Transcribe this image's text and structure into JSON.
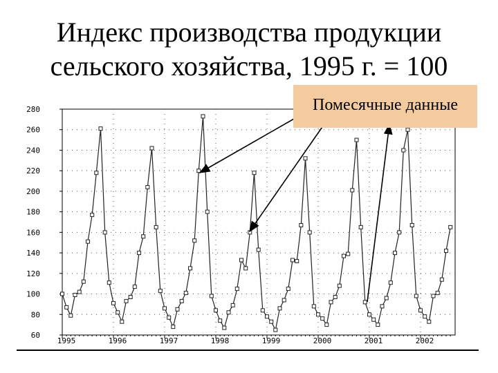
{
  "slide": {
    "title_line1": "Индекс производства продукции",
    "title_line2": "сельского хозяйства, 1995 г. = 100",
    "callout": "Помесячные данные"
  },
  "colors": {
    "line": "#222222",
    "callout_fill": "#f3cb9e",
    "grid": "#555555"
  },
  "chart_data": {
    "type": "line",
    "title": "",
    "xlabel": "",
    "ylabel": "",
    "ylim": [
      60,
      280
    ],
    "yticks": [
      60,
      80,
      100,
      120,
      140,
      160,
      180,
      200,
      220,
      240,
      260,
      280
    ],
    "xticks": [
      "1995",
      "1996",
      "1997",
      "1998",
      "1999",
      "2000",
      "2001",
      "2002"
    ],
    "x_start": "1995-01",
    "grid": "dotted",
    "markers": "square",
    "series": [
      {
        "values": [
          100,
          87,
          79,
          99,
          102,
          112,
          151,
          177,
          218,
          261,
          160,
          111,
          91,
          82,
          73,
          93,
          97,
          107,
          140,
          156,
          204,
          242,
          165,
          103,
          86,
          77,
          68,
          85,
          93,
          101,
          125,
          152,
          220,
          273,
          180,
          98,
          84,
          74,
          67,
          82,
          89,
          105,
          133,
          125,
          160,
          218,
          143,
          84,
          78,
          73,
          65,
          86,
          94,
          105,
          133,
          132,
          167,
          232,
          160,
          88,
          80,
          76,
          70,
          92,
          97,
          108,
          137,
          139,
          201,
          250,
          165,
          92,
          80,
          75,
          70,
          88,
          96,
          111,
          140,
          160,
          240,
          260,
          167,
          98,
          84,
          78,
          73,
          98,
          101,
          114,
          142,
          165
        ]
      }
    ]
  }
}
